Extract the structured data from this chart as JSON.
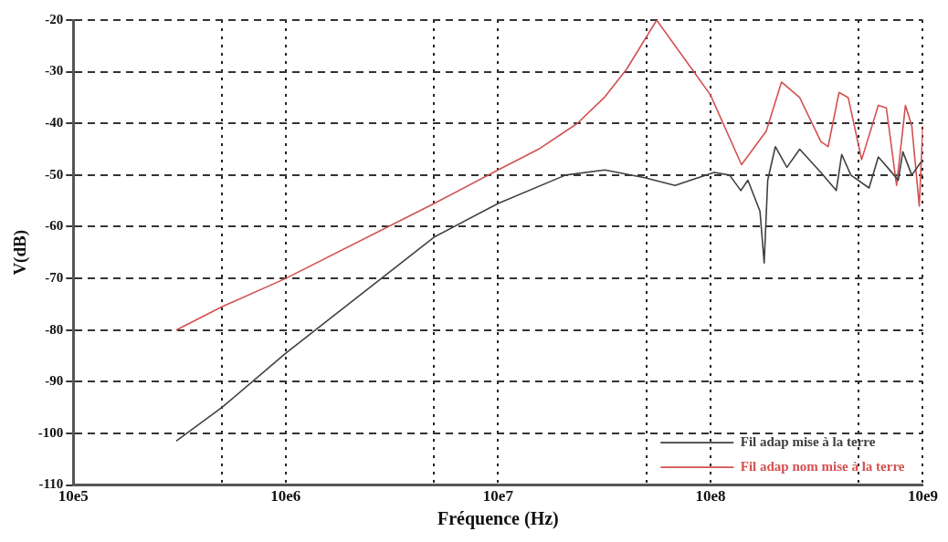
{
  "chart_data": {
    "type": "line",
    "xlabel": "Fréquence (Hz)",
    "ylabel": "V(dB)",
    "log": "x",
    "xlim": [
      1000000,
      10000000000
    ],
    "xticks": [
      {
        "value": 1000000,
        "label": "10e5"
      },
      {
        "value": 5000000,
        "label": null
      },
      {
        "value": 10000000,
        "label": "10e6"
      },
      {
        "value": 50000000,
        "label": null
      },
      {
        "value": 100000000,
        "label": "10e7"
      },
      {
        "value": 500000000,
        "label": null
      },
      {
        "value": 1000000000,
        "label": "10e8"
      },
      {
        "value": 5000000000,
        "label": null
      },
      {
        "value": 10000000000,
        "label": "10e9"
      }
    ],
    "ylim": [
      -110,
      -20
    ],
    "yticks": [
      -110,
      -100,
      -90,
      -80,
      -70,
      -60,
      -50,
      -40,
      -30,
      -20
    ],
    "grid": true,
    "legend": "bottom right",
    "marker": "none",
    "line_style": "solid",
    "series": [
      {
        "name": "Fil adap mise à la terre",
        "color": "#404040",
        "x": [
          3050000,
          5000000,
          10000000,
          50000000,
          100000000,
          208000000,
          318000000,
          490000000,
          681000000,
          1040000000,
          1230000000,
          1390000000,
          1500000000,
          1710000000,
          1790000000,
          1860000000,
          2020000000,
          2290000000,
          2630000000,
          3310000000,
          3910000000,
          4150000000,
          4580000000,
          5580000000,
          6170000000,
          6810000000,
          7660000000,
          8050000000,
          8870000000,
          9790000000
        ],
        "values": [
          -101.5,
          -95,
          -84.5,
          -62,
          -55.5,
          -50,
          -49,
          -50.5,
          -52,
          -49.5,
          -50,
          -53,
          -51,
          -57,
          -67,
          -51,
          -44.5,
          -48.5,
          -45,
          -49.5,
          -53,
          -46,
          -50,
          -52.5,
          -46.5,
          -48.5,
          -51,
          -45.5,
          -50,
          -47.5
        ]
      },
      {
        "name": "Fil adap nom mise à la terre",
        "color": "#d45050",
        "x": [
          3050000,
          5000000,
          10000000,
          50000000,
          100000000,
          155000000,
          236000000,
          316000000,
          403000000,
          558000000,
          1000000000,
          1400000000,
          1830000000,
          2160000000,
          2630000000,
          3310000000,
          3580000000,
          4030000000,
          4450000000,
          5150000000,
          6170000000,
          6730000000,
          7520000000,
          8280000000,
          8870000000,
          9620000000,
          10000000000
        ],
        "values": [
          -80,
          -75.5,
          -70,
          -55.5,
          -49,
          -45,
          -40,
          -35,
          -29.5,
          -20,
          -34.5,
          -48,
          -41.5,
          -32,
          -35,
          -43.5,
          -44.5,
          -34,
          -35,
          -47,
          -36.5,
          -37,
          -52,
          -36.5,
          -40.5,
          -56,
          -40.5
        ]
      }
    ]
  }
}
